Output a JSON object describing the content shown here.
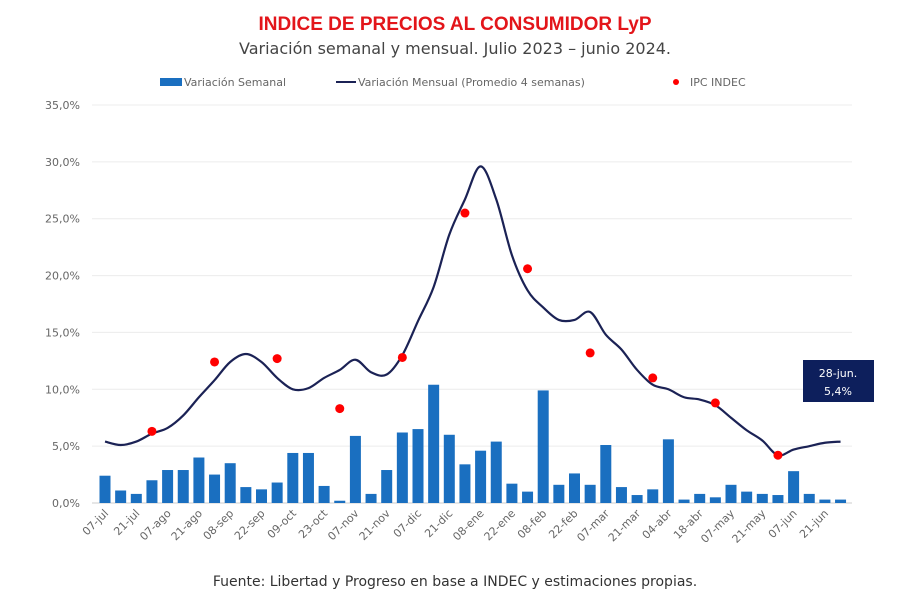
{
  "chart_data": {
    "type": "bar+line",
    "title": "INDICE DE PRECIOS AL CONSUMIDOR LyP",
    "subtitle": "Variación semanal y mensual. Julio 2023 – junio 2024.",
    "source": "Fuente: Libertad y Progreso en base a INDEC y estimaciones propias.",
    "ylim": [
      0,
      35
    ],
    "yticks": [
      "0,0%",
      "5,0%",
      "10,0%",
      "15,0%",
      "20,0%",
      "25,0%",
      "30,0%",
      "35,0%"
    ],
    "grid": true,
    "legend_position": "top",
    "x_labels": [
      "07-jul",
      "21-jul",
      "07-ago",
      "21-ago",
      "08-sep",
      "22-sep",
      "09-oct",
      "23-oct",
      "07-nov",
      "21-nov",
      "07-dic",
      "21-dic",
      "08-ene",
      "22-ene",
      "08-feb",
      "22-feb",
      "07-mar",
      "21-mar",
      "04-abr",
      "18-abr",
      "07-may",
      "21-may",
      "07-jun",
      "21-jun"
    ],
    "series": [
      {
        "name": "Variación Semanal",
        "type": "bar",
        "color": "#1a6fc0",
        "values": [
          2.4,
          1.1,
          0.8,
          2.0,
          2.9,
          2.9,
          4.0,
          2.5,
          3.5,
          1.4,
          1.2,
          1.8,
          4.4,
          4.4,
          1.5,
          0.2,
          5.9,
          0.8,
          2.9,
          6.2,
          6.5,
          10.4,
          6.0,
          3.4,
          4.6,
          5.4,
          1.7,
          1.0,
          9.9,
          1.6,
          2.6,
          1.6,
          5.1,
          1.4,
          0.7,
          1.2,
          5.6,
          0.3,
          0.8,
          0.5,
          1.6,
          1.0,
          0.8,
          0.7,
          2.8,
          0.8,
          0.3,
          0.3
        ]
      },
      {
        "name": "Variación Mensual (Promedio 4 semanas)",
        "type": "line",
        "color": "#1b2255",
        "values": [
          5.4,
          5.1,
          5.4,
          6.1,
          6.6,
          7.7,
          9.3,
          10.8,
          12.4,
          13.1,
          12.4,
          11.0,
          10.0,
          10.1,
          11.0,
          11.7,
          12.6,
          11.5,
          11.3,
          13.0,
          16.0,
          19.0,
          23.6,
          26.7,
          29.6,
          26.7,
          21.8,
          18.7,
          17.2,
          16.1,
          16.1,
          16.8,
          14.8,
          13.5,
          11.7,
          10.4,
          10.0,
          9.3,
          9.1,
          8.6,
          7.5,
          6.4,
          5.5,
          4.2,
          4.7,
          5.0,
          5.3,
          5.4
        ]
      },
      {
        "name": "IPC INDEC",
        "type": "scatter",
        "color": "#ff0000",
        "points": [
          [
            3,
            6.3
          ],
          [
            7,
            12.4
          ],
          [
            11,
            12.7
          ],
          [
            15,
            8.3
          ],
          [
            19,
            12.8
          ],
          [
            23,
            25.5
          ],
          [
            27,
            20.6
          ],
          [
            31,
            13.2
          ],
          [
            35,
            11.0
          ],
          [
            39,
            8.8
          ],
          [
            43,
            4.2
          ]
        ]
      }
    ],
    "annotation": {
      "line1": "28-jun.",
      "line2": "5,4%",
      "color": "#0d1f5c"
    }
  }
}
